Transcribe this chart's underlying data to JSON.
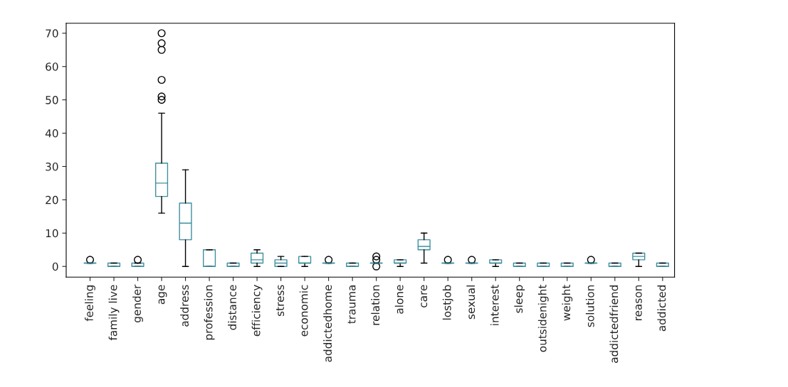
{
  "chart_data": {
    "type": "box",
    "categories": [
      "feeling",
      "family live",
      "gender",
      "age",
      "address",
      "profession",
      "distance",
      "efficiency",
      "stress",
      "economic",
      "addictedhome",
      "trauma",
      "relation",
      "alone",
      "care",
      "lostjob",
      "sexual",
      "interest",
      "sleep",
      "outsidenight",
      "weight",
      "solution",
      "addictedfriend",
      "reason",
      "addicted"
    ],
    "series": [
      {
        "color": "#3f8f9f",
        "boxes": [
          {
            "low": 1,
            "q1": 1,
            "median": 1,
            "q3": 1,
            "high": 1,
            "outliers": [
              2
            ]
          },
          {
            "low": 0,
            "q1": 0,
            "median": 0,
            "q3": 1,
            "high": 1
          },
          {
            "low": 0,
            "q1": 0,
            "median": 0,
            "q3": 1,
            "high": 1,
            "outliers": [
              2
            ]
          },
          {
            "low": 16,
            "q1": 21,
            "median": 25,
            "q3": 31,
            "high": 46,
            "outliers": [
              50,
              51,
              56,
              65,
              67,
              70
            ]
          },
          {
            "low": 0,
            "q1": 8,
            "median": 13,
            "q3": 19,
            "high": 29
          },
          {
            "low": 0,
            "q1": 0,
            "median": 0,
            "q3": 5,
            "high": 5
          },
          {
            "low": 0,
            "q1": 0,
            "median": 0,
            "q3": 1,
            "high": 1
          },
          {
            "low": 0,
            "q1": 1,
            "median": 2,
            "q3": 4,
            "high": 5
          },
          {
            "low": 0,
            "q1": 0,
            "median": 1,
            "q3": 2,
            "high": 3
          },
          {
            "low": 0,
            "q1": 1,
            "median": 1,
            "q3": 3,
            "high": 3
          },
          {
            "low": 1,
            "q1": 1,
            "median": 1,
            "q3": 1,
            "high": 1,
            "outliers": [
              2
            ]
          },
          {
            "low": 0,
            "q1": 0,
            "median": 0,
            "q3": 1,
            "high": 1
          },
          {
            "low": 1,
            "q1": 1,
            "median": 1,
            "q3": 1,
            "high": 1,
            "outliers": [
              0,
              2,
              3
            ]
          },
          {
            "low": 0,
            "q1": 1,
            "median": 1,
            "q3": 2,
            "high": 2
          },
          {
            "low": 1,
            "q1": 5,
            "median": 6,
            "q3": 8,
            "high": 10
          },
          {
            "low": 1,
            "q1": 1,
            "median": 1,
            "q3": 1,
            "high": 1,
            "outliers": [
              2
            ]
          },
          {
            "low": 1,
            "q1": 1,
            "median": 1,
            "q3": 1,
            "high": 1,
            "outliers": [
              2
            ]
          },
          {
            "low": 0,
            "q1": 1,
            "median": 1,
            "q3": 2,
            "high": 2
          },
          {
            "low": 0,
            "q1": 0,
            "median": 0,
            "q3": 1,
            "high": 1
          },
          {
            "low": 0,
            "q1": 0,
            "median": 0,
            "q3": 1,
            "high": 1
          },
          {
            "low": 0,
            "q1": 0,
            "median": 0,
            "q3": 1,
            "high": 1
          },
          {
            "low": 1,
            "q1": 1,
            "median": 1,
            "q3": 1,
            "high": 1,
            "outliers": [
              2
            ]
          },
          {
            "low": 0,
            "q1": 0,
            "median": 0,
            "q3": 1,
            "high": 1
          },
          {
            "low": 0,
            "q1": 2,
            "median": 3,
            "q3": 4,
            "high": 4
          },
          {
            "low": 0,
            "q1": 0,
            "median": 0,
            "q3": 1,
            "high": 1
          }
        ]
      }
    ],
    "ylim": [
      -3.2,
      73
    ],
    "yticks": [
      0,
      10,
      20,
      30,
      40,
      50,
      60,
      70
    ],
    "grid": false
  }
}
